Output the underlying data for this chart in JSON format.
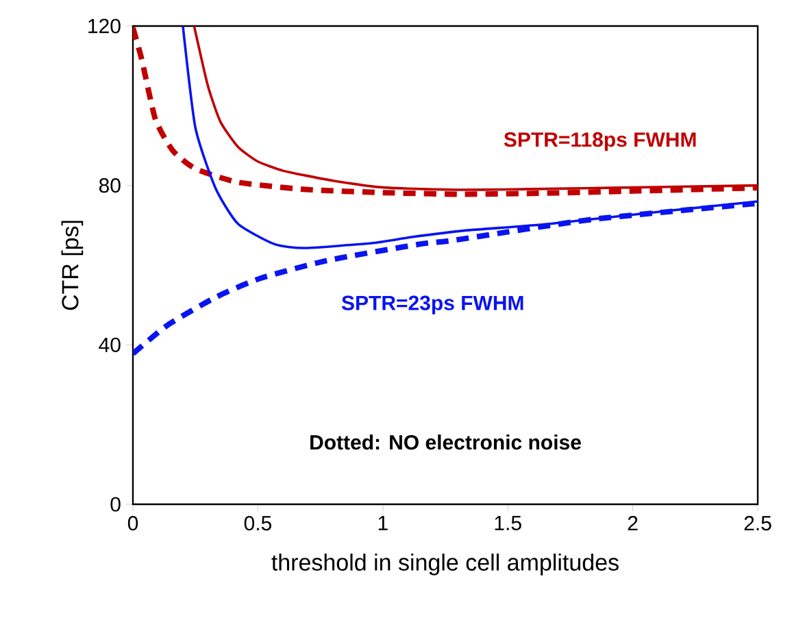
{
  "chart_data": {
    "type": "line",
    "xlabel": "threshold in single cell amplitudes",
    "ylabel": "CTR [ps]",
    "xlim": [
      0,
      2.5
    ],
    "ylim": [
      0,
      120
    ],
    "xticks": [
      0,
      0.5,
      1,
      1.5,
      2,
      2.5
    ],
    "yticks": [
      0,
      40,
      80,
      120
    ],
    "marker": "none",
    "series": [
      {
        "name": "SPTR=118ps FWHM",
        "color": "#c00000",
        "line_style": "solid",
        "x": [
          0.245,
          0.3,
          0.35,
          0.42,
          0.5,
          0.6,
          0.69,
          0.8,
          0.965,
          1.1,
          1.3,
          1.5,
          1.8,
          2.1,
          2.5
        ],
        "values": [
          120,
          105,
          96,
          89.7,
          86,
          83.7,
          82.5,
          81.2,
          79.7,
          79.2,
          78.9,
          79,
          79.3,
          79.6,
          80
        ]
      },
      {
        "color": "#c00000",
        "line_style": "dashed",
        "x": [
          0,
          0.035,
          0.09,
          0.16,
          0.25,
          0.42,
          0.69,
          1.0,
          1.3,
          1.6,
          2.0,
          2.5
        ],
        "values": [
          119.6,
          111.7,
          96.6,
          88.7,
          84.2,
          80.8,
          79,
          78.2,
          77.8,
          78,
          78.6,
          79.4
        ]
      },
      {
        "name": "SPTR=23ps FWHM",
        "color": "#0a14f0",
        "line_style": "solid",
        "x": [
          0.2,
          0.25,
          0.33,
          0.42,
          0.565,
          0.69,
          0.965,
          1.11,
          1.33,
          1.66,
          2.12,
          2.5
        ],
        "values": [
          120,
          94.5,
          79.4,
          70.4,
          65.3,
          64.3,
          65.6,
          67,
          68.7,
          70.3,
          73.5,
          76
        ]
      },
      {
        "color": "#0a14f0",
        "line_style": "dashed",
        "x": [
          0,
          0.14,
          0.33,
          0.51,
          0.78,
          1.15,
          1.29,
          1.84,
          2.5
        ],
        "values": [
          37.8,
          45,
          51.9,
          56.7,
          61.2,
          65.3,
          66.3,
          71.5,
          75.5
        ]
      }
    ],
    "annotations": [
      "Dotted: NO electronic noise"
    ]
  }
}
